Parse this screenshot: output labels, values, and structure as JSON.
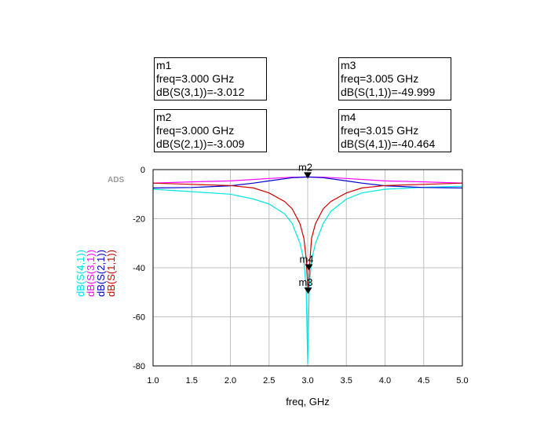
{
  "markers": [
    {
      "name": "m1",
      "freq_text": "freq=3.000 GHz",
      "value_text": "dB(S(3,1))=-3.012",
      "freq": 3.0,
      "value": -3.012,
      "series": "dB(S(3,1))"
    },
    {
      "name": "m2",
      "freq_text": "freq=3.000 GHz",
      "value_text": "dB(S(2,1))=-3.009",
      "freq": 3.0,
      "value": -3.009,
      "series": "dB(S(2,1))"
    },
    {
      "name": "m3",
      "freq_text": "freq=3.005 GHz",
      "value_text": "dB(S(1,1))=-49.999",
      "freq": 3.005,
      "value": -49.999,
      "series": "dB(S(1,1))"
    },
    {
      "name": "m4",
      "freq_text": "freq=3.015 GHz",
      "value_text": "dB(S(4,1))=-40.464",
      "freq": 3.015,
      "value": -40.464,
      "series": "dB(S(4,1))"
    }
  ],
  "plot_labels": {
    "ads": "ADS",
    "m12_overlap": "m2",
    "m4": "m4",
    "m3": "m3"
  },
  "chart_data": {
    "type": "line",
    "xlabel": "freq, GHz",
    "xlim": [
      1.0,
      5.0
    ],
    "ylim": [
      -80,
      0
    ],
    "xticks": [
      "1.0",
      "1.5",
      "2.0",
      "2.5",
      "3.0",
      "3.5",
      "4.0",
      "4.5",
      "5.0"
    ],
    "yticks": [
      "0",
      "-20",
      "-40",
      "-60",
      "-80"
    ],
    "grid": true,
    "legend_position": "left-vertical",
    "series": [
      {
        "name": "dB(S(4,1))",
        "color": "#00e5e5",
        "x": [
          1.0,
          1.5,
          2.0,
          2.3,
          2.5,
          2.7,
          2.8,
          2.9,
          2.95,
          2.98,
          3.0,
          3.02,
          3.05,
          3.1,
          3.2,
          3.3,
          3.5,
          3.7,
          4.0,
          4.5,
          5.0
        ],
        "y": [
          -8.0,
          -9.0,
          -10.0,
          -12.0,
          -14.0,
          -18.0,
          -22.0,
          -30.0,
          -37.0,
          -48.0,
          -79.0,
          -48.0,
          -37.0,
          -30.0,
          -22.0,
          -17.0,
          -12.0,
          -9.5,
          -8.0,
          -7.2,
          -6.8
        ]
      },
      {
        "name": "dB(S(3,1))",
        "color": "#ff00ff",
        "x": [
          1.0,
          1.5,
          2.0,
          2.5,
          2.8,
          3.0,
          3.2,
          3.5,
          4.0,
          4.5,
          5.0
        ],
        "y": [
          -5.5,
          -5.0,
          -4.6,
          -3.6,
          -3.1,
          -3.0,
          -3.1,
          -3.6,
          -4.6,
          -5.0,
          -5.5
        ]
      },
      {
        "name": "dB(S(2,1))",
        "color": "#0000cc",
        "x": [
          1.0,
          1.5,
          2.0,
          2.3,
          2.5,
          2.8,
          3.0,
          3.2,
          3.5,
          3.7,
          4.0,
          4.5,
          5.0
        ],
        "y": [
          -7.5,
          -7.3,
          -6.6,
          -5.5,
          -4.6,
          -3.3,
          -3.0,
          -3.3,
          -4.6,
          -5.5,
          -6.6,
          -7.3,
          -7.5
        ]
      },
      {
        "name": "dB(S(1,1))",
        "color": "#cc0000",
        "x": [
          1.0,
          1.5,
          2.0,
          2.3,
          2.5,
          2.7,
          2.8,
          2.9,
          2.95,
          2.98,
          3.005,
          3.03,
          3.05,
          3.1,
          3.2,
          3.3,
          3.5,
          3.7,
          4.0,
          4.5,
          5.0
        ],
        "y": [
          -5.5,
          -6.0,
          -6.5,
          -7.5,
          -9.5,
          -13.0,
          -16.0,
          -22.0,
          -28.0,
          -36.0,
          -49.999,
          -36.0,
          -28.0,
          -22.0,
          -16.0,
          -13.0,
          -9.5,
          -7.5,
          -6.5,
          -6.0,
          -5.5
        ]
      }
    ]
  }
}
